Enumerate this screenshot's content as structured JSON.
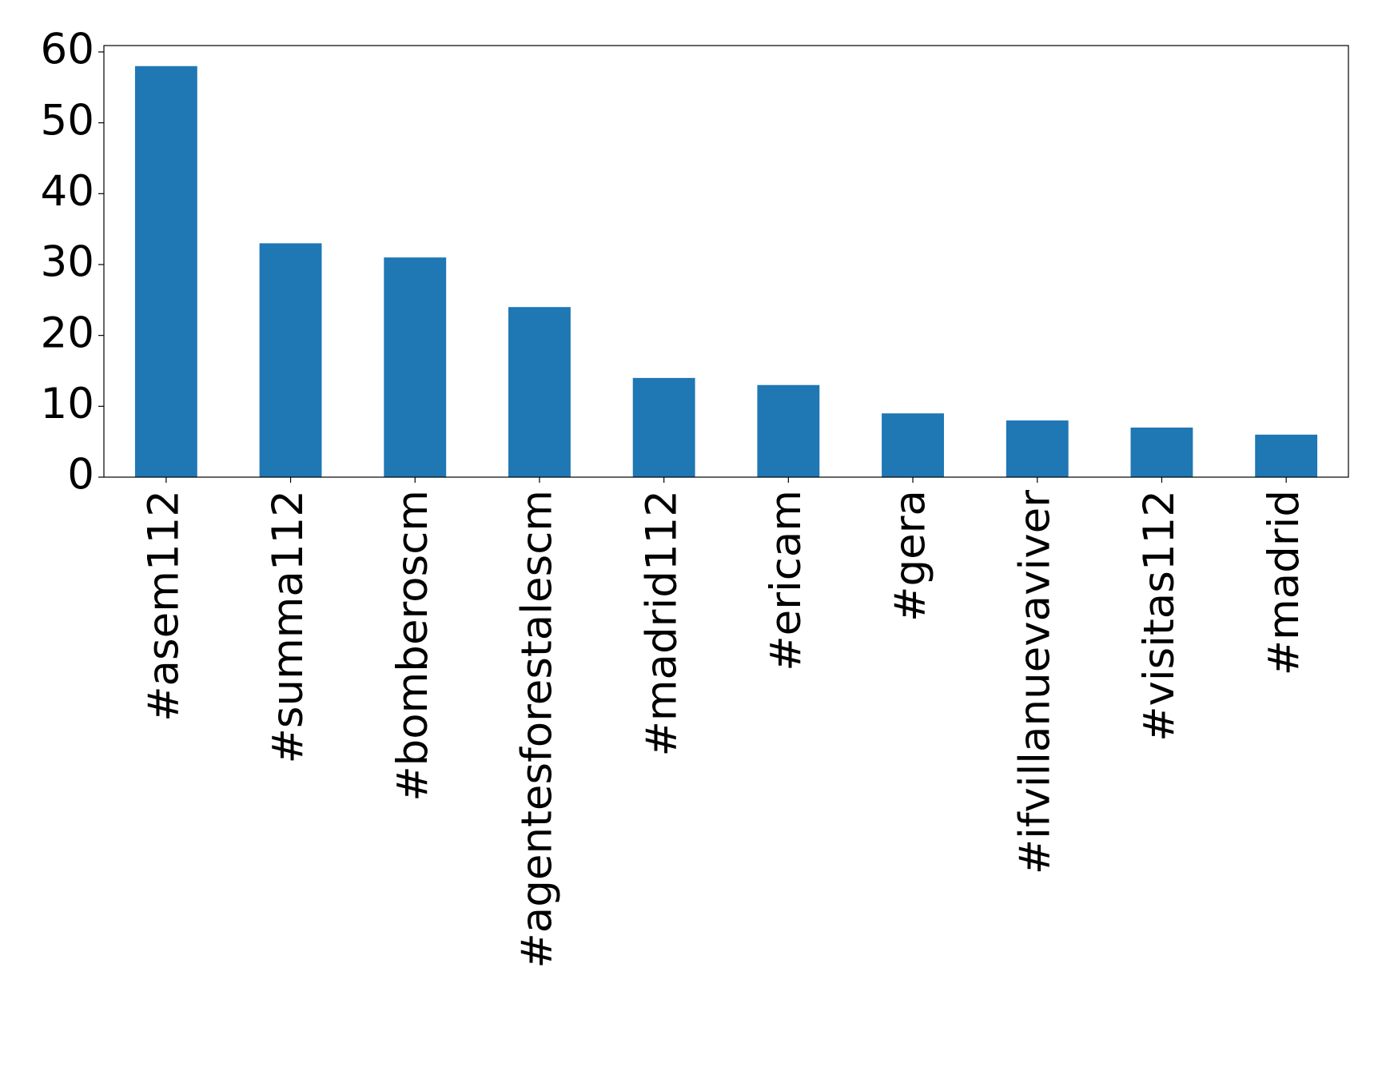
{
  "chart_data": {
    "type": "bar",
    "categories": [
      "#asem112",
      "#summa112",
      "#bomberoscm",
      "#agentesforestalescm",
      "#madrid112",
      "#ericam",
      "#gera",
      "#ifvillanuevaviver",
      "#visitas112",
      "#madrid"
    ],
    "values": [
      58,
      33,
      31,
      24,
      14,
      13,
      9,
      8,
      7,
      6
    ],
    "color": "#1f77b4",
    "ylim": [
      0,
      60.9
    ],
    "yticks": [
      0,
      10,
      20,
      30,
      40,
      50,
      60
    ],
    "grid": false
  }
}
